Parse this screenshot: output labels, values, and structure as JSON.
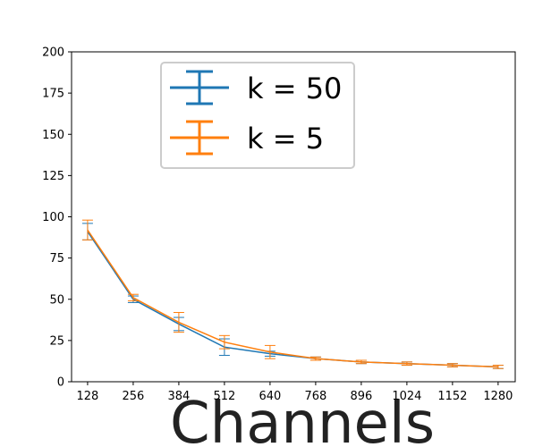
{
  "chart_data": {
    "type": "errorbar",
    "xlabel": "Channels",
    "x": [
      128,
      256,
      384,
      512,
      640,
      768,
      896,
      1024,
      1152,
      1280
    ],
    "xlim": [
      83,
      1328
    ],
    "xticks": [
      128,
      256,
      384,
      512,
      640,
      768,
      896,
      1024,
      1152,
      1280
    ],
    "ylim": [
      0,
      200
    ],
    "yticks": [
      0,
      25,
      50,
      75,
      100,
      125,
      150,
      175,
      200
    ],
    "grid": false,
    "legend": "upper center",
    "series": [
      {
        "name": "k = 50",
        "color": "#1f77b4",
        "values": [
          91,
          50,
          35,
          21,
          17,
          14,
          12,
          11,
          10,
          9
        ],
        "errors": [
          5,
          2,
          4,
          5,
          1.5,
          1,
          1,
          1,
          1,
          1
        ]
      },
      {
        "name": "k = 5",
        "color": "#ff7f0e",
        "values": [
          92,
          51,
          36,
          24,
          18,
          14,
          12,
          11,
          10,
          9
        ],
        "errors": [
          6,
          2,
          6,
          4,
          4,
          1,
          1,
          1,
          1,
          1
        ]
      }
    ]
  }
}
